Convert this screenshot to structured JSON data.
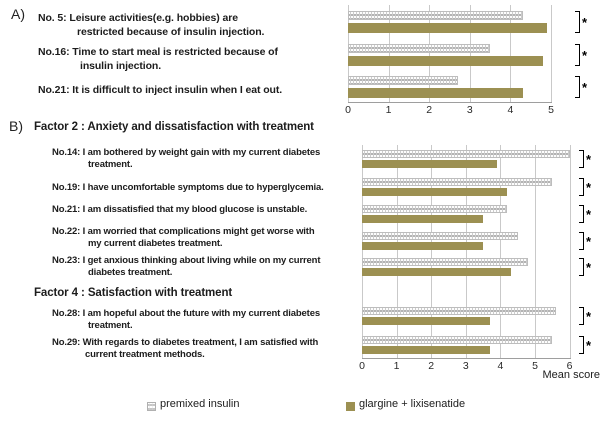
{
  "colors": {
    "glargine_bar": "#9c9052",
    "hatch_dot": "#9a9a9a",
    "gridline": "#c9c9c9",
    "axis": "#9e9e9e",
    "text": "#1c1c1c"
  },
  "panelA": {
    "label": "A)",
    "items": [
      {
        "line1": "No. 5: Leisure activities(e.g. hobbies) are",
        "line2": "restricted because of insulin injection."
      },
      {
        "line1": "No.16: Time to start meal is restricted because of",
        "line2": "insulin injection."
      },
      {
        "line1": "No.21: It is difficult to inject insulin when I eat out."
      }
    ]
  },
  "panelB": {
    "label": "B)",
    "factor2_heading": "Factor 2 : Anxiety and dissatisfaction with treatment",
    "factor4_heading": "Factor 4 : Satisfaction with treatment",
    "items": [
      {
        "line1": "No.14: I am bothered by weight gain with my current diabetes",
        "line2": "treatment."
      },
      {
        "line1": "No.19: I have uncomfortable symptoms due to hyperglycemia."
      },
      {
        "line1": "No.21: I am dissatisfied that my blood glucose is unstable."
      },
      {
        "line1": "No.22: I am worried that complications might get worse with",
        "line2": "my current diabetes treatment."
      },
      {
        "line1": "No.23: I get anxious thinking about living while on my current",
        "line2": "diabetes treatment."
      },
      {
        "line1": "No.28: I am hopeful about the future with my current diabetes",
        "line2": "treatment."
      },
      {
        "line1": "No.29: With regards to diabetes treatment, I am satisfied with",
        "line2": "current treatment methods."
      }
    ]
  },
  "legend": {
    "premixed_label": "premixed insulin",
    "glargine_label": "glargine + lixisenatide"
  },
  "chart_data": [
    {
      "type": "bar",
      "orientation": "horizontal",
      "panel": "A",
      "title": "",
      "categories": [
        "No. 5",
        "No.16",
        "No.21"
      ],
      "series": [
        {
          "name": "premixed insulin",
          "values": [
            4.3,
            3.5,
            2.7
          ]
        },
        {
          "name": "glargine + lixisenatide",
          "values": [
            4.9,
            4.8,
            4.3
          ]
        }
      ],
      "significance": [
        "*",
        "*",
        "*"
      ],
      "xlim": [
        0,
        5
      ],
      "xticks": [
        0,
        1,
        2,
        3,
        4,
        5
      ],
      "grid": true,
      "xlabel": "",
      "ylabel": ""
    },
    {
      "type": "bar",
      "orientation": "horizontal",
      "panel": "B",
      "title": "",
      "categories": [
        "No.14",
        "No.19",
        "No.21",
        "No.22",
        "No.23",
        "No.28",
        "No.29"
      ],
      "series": [
        {
          "name": "premixed insulin",
          "values": [
            6.0,
            5.5,
            4.2,
            4.5,
            4.8,
            5.6,
            5.5
          ]
        },
        {
          "name": "glargine + lixisenatide",
          "values": [
            3.9,
            4.2,
            3.5,
            3.5,
            4.3,
            3.7,
            3.7
          ]
        }
      ],
      "significance": [
        "*",
        "*",
        "*",
        "*",
        "*",
        "*",
        "*"
      ],
      "xlim": [
        0,
        6
      ],
      "xticks": [
        0,
        1,
        2,
        3,
        4,
        5,
        6
      ],
      "grid": true,
      "xlabel": "Mean score",
      "ylabel": ""
    }
  ]
}
